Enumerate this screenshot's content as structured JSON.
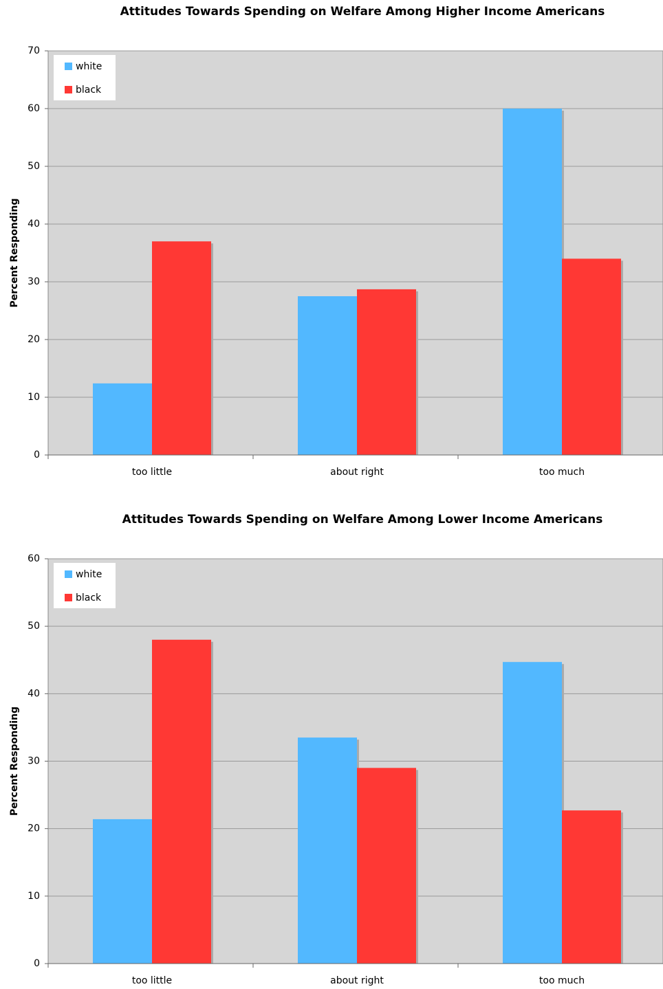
{
  "chart_data": [
    {
      "type": "bar",
      "title": "Attitudes Towards Spending on Welfare Among Higher Income Americans",
      "y_label": "Percent Responding",
      "categories": [
        "too little",
        "about right",
        "too much"
      ],
      "series": [
        {
          "name": "white",
          "color": "#52b8ff",
          "values": [
            12.4,
            27.5,
            60
          ]
        },
        {
          "name": "black",
          "color": "#ff3834",
          "values": [
            37,
            28.7,
            34
          ]
        }
      ],
      "ylim": [
        0,
        70
      ],
      "yticks": [
        0,
        10,
        20,
        30,
        40,
        50,
        60,
        70
      ],
      "grid": true,
      "legend": "top-left"
    },
    {
      "type": "bar",
      "title": "Attitudes Towards Spending on Welfare Among Lower Income Americans",
      "y_label": "Percent Responding",
      "categories": [
        "too little",
        "about right",
        "too much"
      ],
      "series": [
        {
          "name": "white",
          "color": "#52b8ff",
          "values": [
            21.4,
            33.5,
            44.7
          ]
        },
        {
          "name": "black",
          "color": "#ff3834",
          "values": [
            48,
            29,
            22.7
          ]
        }
      ],
      "ylim": [
        0,
        60
      ],
      "yticks": [
        0,
        10,
        20,
        30,
        40,
        50,
        60
      ],
      "grid": true,
      "legend": "top-left"
    }
  ]
}
